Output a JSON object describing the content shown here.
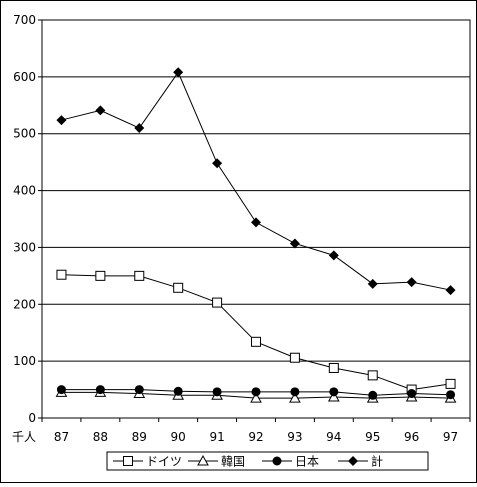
{
  "chart_data": {
    "type": "line",
    "categories": [
      "87",
      "88",
      "89",
      "90",
      "91",
      "92",
      "93",
      "94",
      "95",
      "96",
      "97"
    ],
    "unit_label": "千人",
    "ylim": [
      0,
      700
    ],
    "yticks": [
      0,
      100,
      200,
      300,
      400,
      500,
      600,
      700
    ],
    "grid": true,
    "legend_position": "bottom",
    "series": [
      {
        "name": "ドイツ",
        "marker": "square-open",
        "color": "#000000",
        "values": [
          252,
          250,
          250,
          229,
          203,
          134,
          106,
          88,
          75,
          50,
          60
        ]
      },
      {
        "name": "韓国",
        "marker": "triangle-open",
        "color": "#000000",
        "values": [
          45,
          45,
          43,
          40,
          40,
          35,
          35,
          37,
          35,
          37,
          35
        ]
      },
      {
        "name": "日本",
        "marker": "circle-filled",
        "color": "#000000",
        "values": [
          50,
          50,
          50,
          47,
          46,
          46,
          46,
          46,
          40,
          43,
          41
        ]
      },
      {
        "name": "計",
        "marker": "diamond-filled",
        "color": "#000000",
        "values": [
          524,
          541,
          510,
          608,
          448,
          344,
          307,
          286,
          236,
          239,
          225
        ]
      }
    ]
  }
}
